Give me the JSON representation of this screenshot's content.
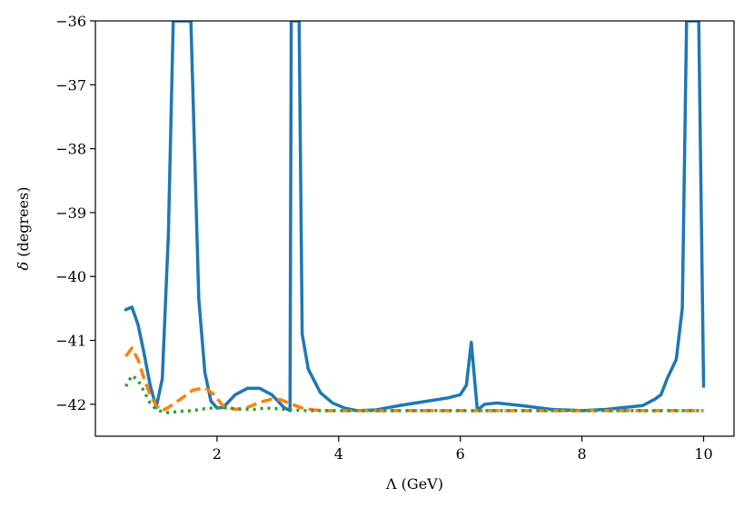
{
  "chart_data": {
    "type": "line",
    "title": "",
    "xlabel": "Λ (GeV)",
    "ylabel_symbol": "δ",
    "ylabel_rest": " (degrees)",
    "xlim": [
      0.0,
      10.5
    ],
    "ylim": [
      -42.5,
      -36.0
    ],
    "xticks": [
      2,
      4,
      6,
      8,
      10
    ],
    "yticks": [
      -42,
      -41,
      -40,
      -39,
      -38,
      -37,
      -36
    ],
    "ytick_labels": [
      "−42",
      "−41",
      "−40",
      "−39",
      "−38",
      "−37",
      "−36"
    ],
    "grid": false,
    "legend": "none",
    "series": [
      {
        "color": "#1f77b4",
        "style": "solid",
        "x": [
          0.5,
          0.6,
          0.7,
          0.8,
          0.9,
          1.0,
          1.1,
          1.2,
          1.28,
          1.3,
          1.55,
          1.57,
          1.7,
          1.8,
          1.9,
          2.0,
          2.1,
          2.3,
          2.5,
          2.7,
          2.9,
          3.0,
          3.1,
          3.2,
          3.22,
          3.3,
          3.35,
          3.4,
          3.5,
          3.7,
          3.9,
          4.1,
          4.3,
          4.6,
          5.0,
          5.4,
          5.8,
          6.0,
          6.1,
          6.18,
          6.28,
          6.4,
          6.6,
          7.0,
          7.5,
          8.0,
          8.4,
          8.7,
          9.0,
          9.2,
          9.3,
          9.4,
          9.55,
          9.65,
          9.72,
          9.75,
          9.9,
          9.92,
          10.0
        ],
        "y": [
          -40.52,
          -40.48,
          -40.75,
          -41.2,
          -41.7,
          -42.05,
          -41.6,
          -39.35,
          -36.0,
          -36.0,
          -36.0,
          -36.0,
          -40.35,
          -41.5,
          -41.95,
          -42.06,
          -42.05,
          -41.85,
          -41.75,
          -41.75,
          -41.85,
          -41.95,
          -42.05,
          -42.1,
          -36.0,
          -36.0,
          -36.0,
          -40.9,
          -41.45,
          -41.82,
          -41.98,
          -42.06,
          -42.1,
          -42.09,
          -42.02,
          -41.96,
          -41.9,
          -41.85,
          -41.7,
          -41.03,
          -42.09,
          -42.0,
          -41.98,
          -42.02,
          -42.08,
          -42.1,
          -42.08,
          -42.05,
          -42.02,
          -41.92,
          -41.85,
          -41.6,
          -41.3,
          -40.5,
          -36.0,
          -36.0,
          -36.0,
          -36.0,
          -41.72
        ]
      },
      {
        "color": "#ff7f0e",
        "style": "dashed",
        "x": [
          0.5,
          0.6,
          0.7,
          0.8,
          0.9,
          1.0,
          1.1,
          1.2,
          1.4,
          1.6,
          1.8,
          1.95,
          2.1,
          2.3,
          2.5,
          2.7,
          2.9,
          3.05,
          3.2,
          3.4,
          3.6,
          3.8,
          4.0,
          5.0,
          6.0,
          7.0,
          8.0,
          9.0,
          10.0
        ],
        "y": [
          -41.25,
          -41.12,
          -41.3,
          -41.6,
          -41.85,
          -42.02,
          -42.1,
          -42.05,
          -41.92,
          -41.78,
          -41.74,
          -41.85,
          -42.03,
          -42.08,
          -42.05,
          -41.97,
          -41.92,
          -41.93,
          -41.99,
          -42.06,
          -42.09,
          -42.1,
          -42.1,
          -42.1,
          -42.1,
          -42.1,
          -42.1,
          -42.1,
          -42.1
        ]
      },
      {
        "color": "#2ca02c",
        "style": "dotted",
        "x": [
          0.5,
          0.6,
          0.7,
          0.8,
          0.9,
          1.0,
          1.1,
          1.2,
          1.4,
          1.6,
          1.8,
          2.0,
          2.2,
          2.4,
          2.6,
          2.8,
          3.0,
          3.2,
          3.5,
          4.0,
          5.0,
          6.0,
          7.0,
          8.0,
          9.0,
          10.0
        ],
        "y": [
          -41.72,
          -41.55,
          -41.62,
          -41.8,
          -41.98,
          -42.08,
          -42.12,
          -42.13,
          -42.11,
          -42.1,
          -42.07,
          -42.05,
          -42.06,
          -42.08,
          -42.08,
          -42.06,
          -42.07,
          -42.09,
          -42.1,
          -42.1,
          -42.1,
          -42.1,
          -42.1,
          -42.1,
          -42.1,
          -42.1
        ]
      }
    ]
  }
}
